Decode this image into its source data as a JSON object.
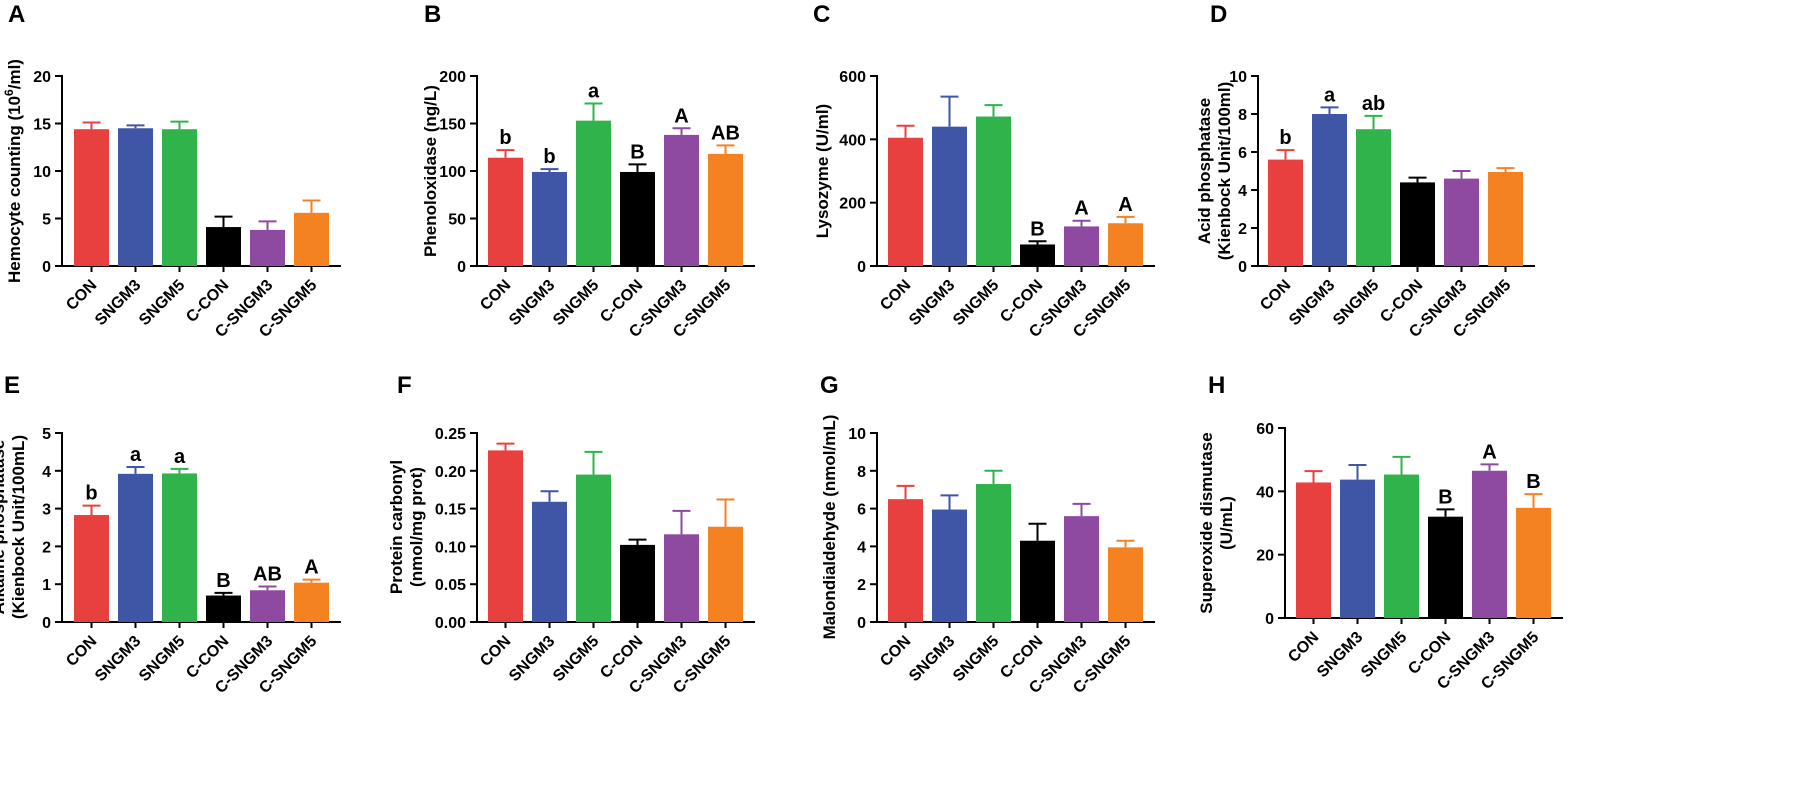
{
  "figure": {
    "description_colors": [
      "#e8403f",
      "#3f55a6",
      "#2fb34a",
      "#000000",
      "#8e4aa0",
      "#f58220"
    ]
  },
  "categories": [
    "CON",
    "SNGM3",
    "SNGM5",
    "C-CON",
    "C-SNGM3",
    "C-SNGM5"
  ],
  "colors": [
    "#e8403f",
    "#3f55a6",
    "#2fb34a",
    "#000000",
    "#8e4aa0",
    "#f58220"
  ],
  "chart_data": [
    {
      "type": "bar",
      "panel": "A",
      "ylabel_lines": [
        "Hemocyte counting (10",
        "6",
        "/ml)"
      ],
      "ylabel_super": true,
      "categories": [
        "CON",
        "SNGM3",
        "SNGM5",
        "C-CON",
        "C-SNGM3",
        "C-SNGM5"
      ],
      "values": [
        14.4,
        14.5,
        14.4,
        4.1,
        3.8,
        5.6
      ],
      "errors": [
        0.7,
        0.3,
        0.8,
        1.1,
        0.9,
        1.3
      ],
      "sig": [
        "",
        "",
        "",
        "",
        "",
        ""
      ],
      "ylim": [
        0,
        20
      ],
      "ticks": [
        0,
        5,
        10,
        15,
        20
      ],
      "tick_labels": [
        "0",
        "5",
        "10",
        "15",
        "20"
      ]
    },
    {
      "type": "bar",
      "panel": "B",
      "ylabel_lines": [
        "Phenoloxidase (ng/L)"
      ],
      "categories": [
        "CON",
        "SNGM3",
        "SNGM5",
        "C-CON",
        "C-SNGM3",
        "C-SNGM5"
      ],
      "values": [
        114,
        99,
        153,
        99,
        138,
        118
      ],
      "errors": [
        8,
        3,
        18,
        8,
        7,
        9
      ],
      "sig": [
        "b",
        "b",
        "a",
        "B",
        "A",
        "AB"
      ],
      "ylim": [
        0,
        200
      ],
      "ticks": [
        0,
        50,
        100,
        150,
        200
      ],
      "tick_labels": [
        "0",
        "50",
        "100",
        "150",
        "200"
      ]
    },
    {
      "type": "bar",
      "panel": "C",
      "ylabel_lines": [
        "Lysozyme (U/ml)"
      ],
      "categories": [
        "CON",
        "SNGM3",
        "SNGM5",
        "C-CON",
        "C-SNGM3",
        "C-SNGM5"
      ],
      "values": [
        405,
        440,
        472,
        68,
        125,
        135
      ],
      "errors": [
        38,
        95,
        36,
        10,
        18,
        20
      ],
      "sig": [
        "",
        "",
        "",
        "B",
        "A",
        "A"
      ],
      "ylim": [
        0,
        600
      ],
      "ticks": [
        0,
        200,
        400,
        600
      ],
      "tick_labels": [
        "0",
        "200",
        "400",
        "600"
      ]
    },
    {
      "type": "bar",
      "panel": "D",
      "ylabel_lines": [
        "Acid phosphatase",
        "(Kienbock Unit/100ml)"
      ],
      "categories": [
        "CON",
        "SNGM3",
        "SNGM5",
        "C-CON",
        "C-SNGM3",
        "C-SNGM5"
      ],
      "values": [
        5.6,
        8.0,
        7.2,
        4.4,
        4.6,
        4.95
      ],
      "errors": [
        0.5,
        0.35,
        0.7,
        0.25,
        0.4,
        0.2
      ],
      "sig": [
        "b",
        "a",
        "ab",
        "",
        "",
        ""
      ],
      "ylim": [
        0,
        10
      ],
      "ticks": [
        0,
        2,
        4,
        6,
        8,
        10
      ],
      "tick_labels": [
        "0",
        "2",
        "4",
        "6",
        "8",
        "10"
      ]
    },
    {
      "type": "bar",
      "panel": "E",
      "ylabel_lines": [
        "Alkaline phosphatase",
        "(Kienbock Unit/100mL)"
      ],
      "categories": [
        "CON",
        "SNGM3",
        "SNGM5",
        "C-CON",
        "C-SNGM3",
        "C-SNGM5"
      ],
      "values": [
        2.83,
        3.92,
        3.93,
        0.7,
        0.84,
        1.04
      ],
      "errors": [
        0.25,
        0.18,
        0.12,
        0.07,
        0.1,
        0.08
      ],
      "sig": [
        "b",
        "a",
        "a",
        "B",
        "AB",
        "A"
      ],
      "ylim": [
        0,
        5
      ],
      "ticks": [
        0,
        1,
        2,
        3,
        4,
        5
      ],
      "tick_labels": [
        "0",
        "1",
        "2",
        "3",
        "4",
        "5"
      ]
    },
    {
      "type": "bar",
      "panel": "F",
      "ylabel_lines": [
        "Protein carbonyl",
        "(nmol/mg prot)"
      ],
      "categories": [
        "CON",
        "SNGM3",
        "SNGM5",
        "C-CON",
        "C-SNGM3",
        "C-SNGM5"
      ],
      "values": [
        0.227,
        0.159,
        0.195,
        0.102,
        0.116,
        0.126
      ],
      "errors": [
        0.009,
        0.014,
        0.03,
        0.007,
        0.031,
        0.036
      ],
      "sig": [
        "",
        "",
        "",
        "",
        "",
        ""
      ],
      "ylim": [
        0,
        0.25
      ],
      "ticks": [
        0,
        0.05,
        0.1,
        0.15,
        0.2,
        0.25
      ],
      "tick_labels": [
        "0.00",
        "0.05",
        "0.10",
        "0.15",
        "0.20",
        "0.25"
      ]
    },
    {
      "type": "bar",
      "panel": "G",
      "ylabel_lines": [
        "Malondialdehyde (nmol/mL)"
      ],
      "categories": [
        "CON",
        "SNGM3",
        "SNGM5",
        "C-CON",
        "C-SNGM3",
        "C-SNGM5"
      ],
      "values": [
        6.5,
        5.95,
        7.3,
        4.3,
        5.6,
        3.95
      ],
      "errors": [
        0.7,
        0.75,
        0.7,
        0.9,
        0.65,
        0.35
      ],
      "sig": [
        "",
        "",
        "",
        "",
        "",
        ""
      ],
      "ylim": [
        0,
        10
      ],
      "ticks": [
        0,
        2,
        4,
        6,
        8,
        10
      ],
      "tick_labels": [
        "0",
        "2",
        "4",
        "6",
        "8",
        "10"
      ]
    },
    {
      "type": "bar",
      "panel": "H",
      "ylabel_lines": [
        "Superoxide dismutase",
        "(U/mL)"
      ],
      "categories": [
        "CON",
        "SNGM3",
        "SNGM5",
        "C-CON",
        "C-SNGM3",
        "C-SNGM5"
      ],
      "values": [
        42.8,
        43.7,
        45.3,
        32.0,
        46.5,
        34.8
      ],
      "errors": [
        3.6,
        4.6,
        5.6,
        2.3,
        2.0,
        4.3
      ],
      "sig": [
        "",
        "",
        "",
        "B",
        "A",
        "B"
      ],
      "ylim": [
        0,
        60
      ],
      "ticks": [
        0,
        20,
        40,
        60
      ],
      "tick_labels": [
        "0",
        "20",
        "40",
        "60"
      ]
    }
  ]
}
